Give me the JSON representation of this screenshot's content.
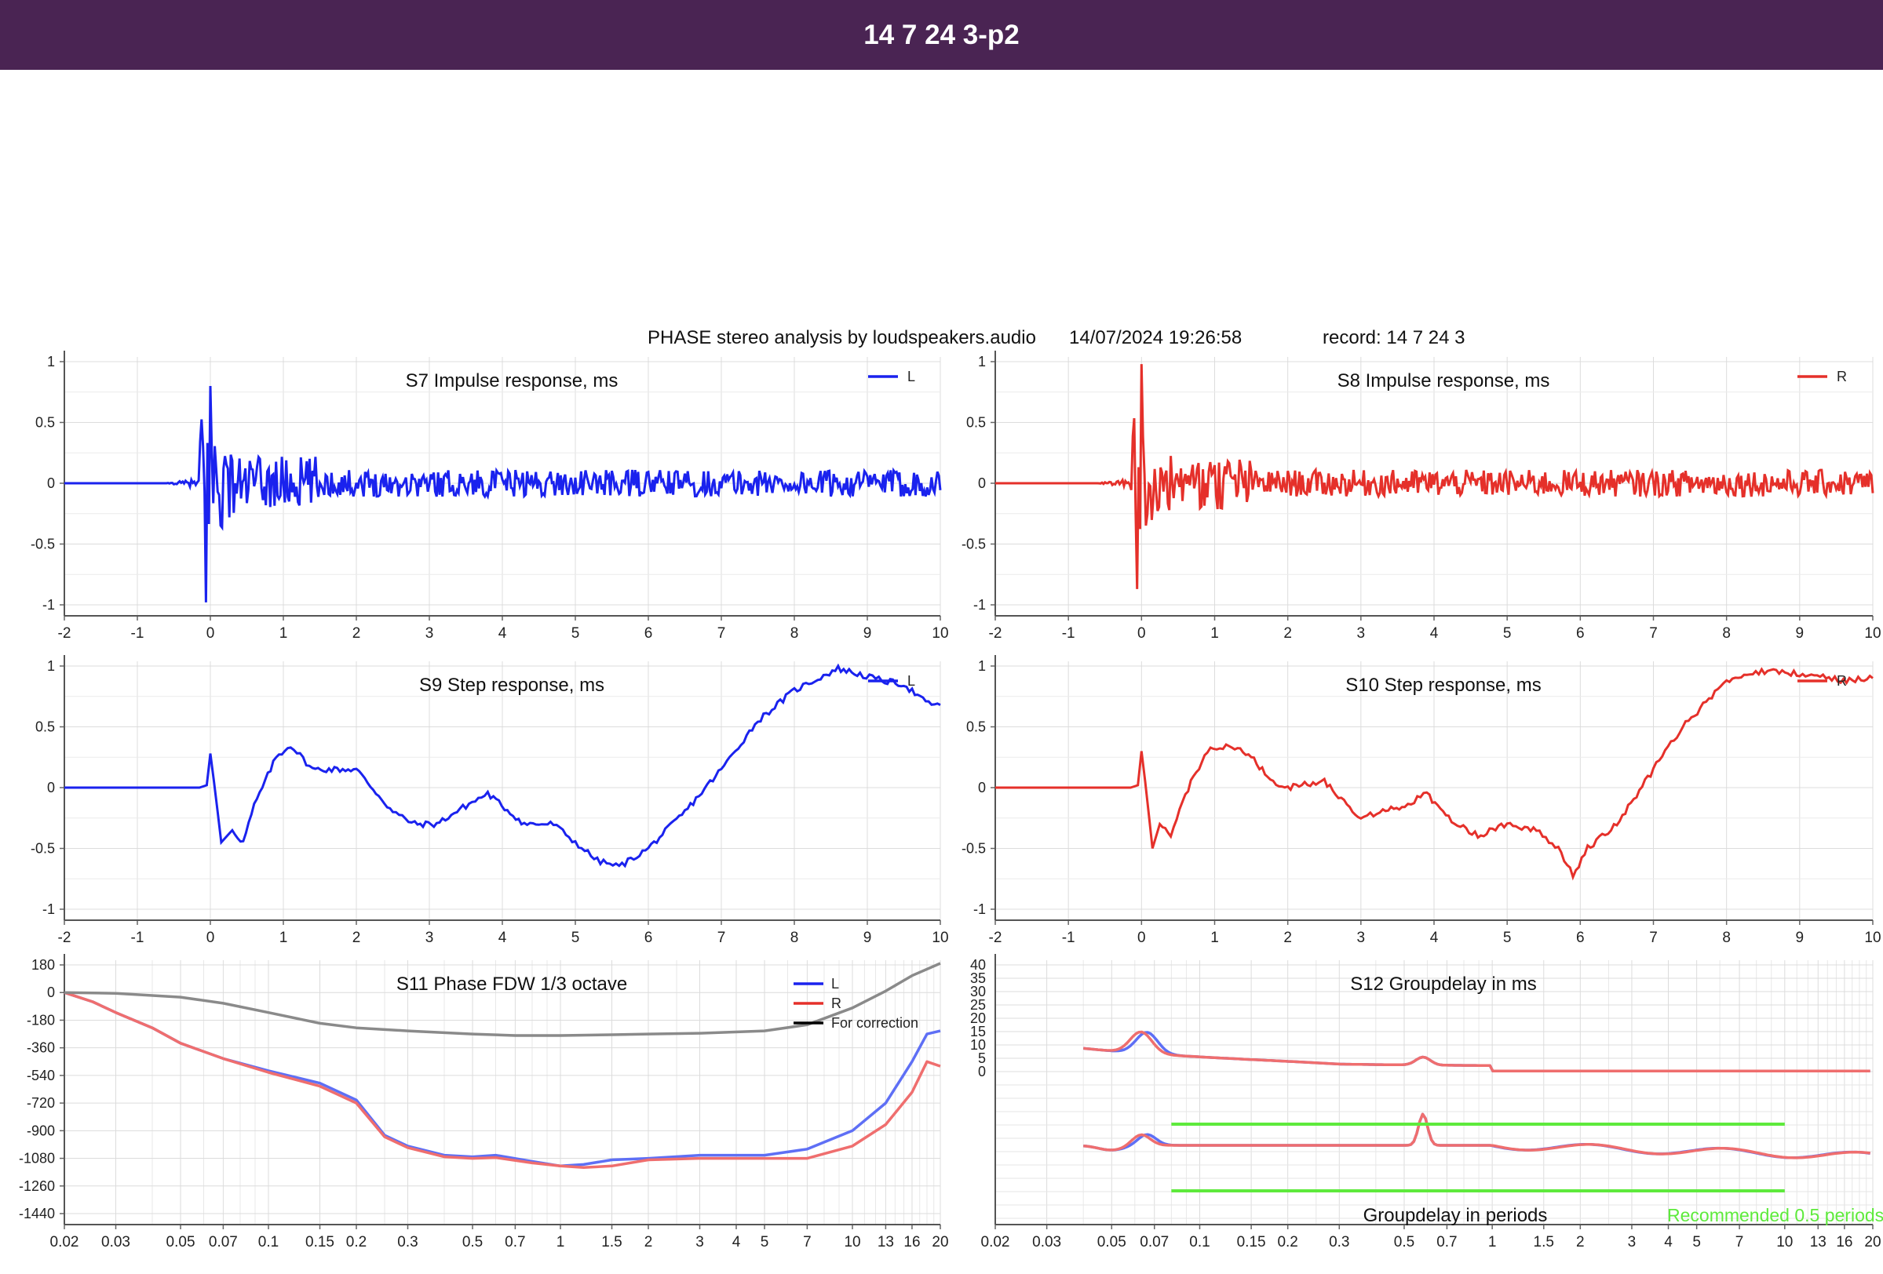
{
  "window": {
    "title": "14 7 24 3-p2"
  },
  "header": {
    "app": "PHASE stereo analysis by loudspeakers.audio",
    "datetime": "14/07/2024 19:26:58",
    "record": "record: 14 7 24 3"
  },
  "colors": {
    "L": "#1a22ee",
    "R": "#e5302a",
    "correction": "#8a8a8a",
    "green": "#5eea3c",
    "L_light": "#5e6ff5",
    "R_light": "#ef6e6e",
    "bar": "#4a2453"
  },
  "chart_data": [
    {
      "id": "s7",
      "type": "line",
      "title": "S7   Impulse response, ms",
      "xlim": [
        -2,
        10
      ],
      "ylim": [
        -1,
        1
      ],
      "xticks": [
        "-2",
        "-1",
        "0",
        "1",
        "2",
        "3",
        "4",
        "5",
        "6",
        "7",
        "8",
        "9",
        "10"
      ],
      "yticks": [
        "1",
        "0.5",
        "0",
        "-0.5",
        "-1"
      ],
      "legend": [
        "L"
      ],
      "series": [
        {
          "name": "L",
          "color": "L",
          "shape": "impulse",
          "peak_pos": 0.8,
          "peak_neg": -0.98
        }
      ]
    },
    {
      "id": "s8",
      "type": "line",
      "title": "S8   Impulse response, ms",
      "xlim": [
        -2,
        10
      ],
      "ylim": [
        -1,
        1
      ],
      "xticks": [
        "-2",
        "-1",
        "0",
        "1",
        "2",
        "3",
        "4",
        "5",
        "6",
        "7",
        "8",
        "9",
        "10"
      ],
      "yticks": [
        "1",
        "0.5",
        "0",
        "-0.5",
        "-1"
      ],
      "legend": [
        "R"
      ],
      "series": [
        {
          "name": "R",
          "color": "R",
          "shape": "impulse",
          "peak_pos": 0.98,
          "peak_neg": -0.87
        }
      ]
    },
    {
      "id": "s9",
      "type": "line",
      "title": "S9   Step response, ms",
      "xlim": [
        -2,
        10
      ],
      "ylim": [
        -1,
        1
      ],
      "xticks": [
        "-2",
        "-1",
        "0",
        "1",
        "2",
        "3",
        "4",
        "5",
        "6",
        "7",
        "8",
        "9",
        "10"
      ],
      "yticks": [
        "1",
        "0.5",
        "0",
        "-0.5",
        "-1"
      ],
      "legend": [
        "L"
      ],
      "series": [
        {
          "name": "L",
          "color": "L",
          "x": [
            -2,
            -0.15,
            -0.05,
            0.0,
            0.05,
            0.15,
            0.3,
            0.45,
            0.6,
            0.9,
            1.1,
            1.4,
            1.7,
            2.0,
            2.5,
            2.8,
            3.1,
            3.5,
            3.8,
            4.3,
            4.7,
            5.0,
            5.3,
            5.6,
            6.0,
            6.5,
            7.0,
            7.5,
            8.0,
            8.4,
            8.6,
            8.9,
            9.2,
            9.5,
            9.8,
            10.0
          ],
          "y": [
            0,
            0,
            0.02,
            0.28,
            0.05,
            -0.45,
            -0.35,
            -0.45,
            -0.15,
            0.25,
            0.35,
            0.15,
            0.15,
            0.15,
            -0.2,
            -0.3,
            -0.3,
            -0.15,
            -0.05,
            -0.3,
            -0.3,
            -0.45,
            -0.6,
            -0.65,
            -0.5,
            -0.2,
            0.15,
            0.55,
            0.8,
            0.92,
            0.98,
            0.93,
            0.88,
            0.85,
            0.7,
            0.68
          ]
        }
      ]
    },
    {
      "id": "s10",
      "type": "line",
      "title": "S10   Step response, ms",
      "xlim": [
        -2,
        10
      ],
      "ylim": [
        -1,
        1
      ],
      "xticks": [
        "-2",
        "-1",
        "0",
        "1",
        "2",
        "3",
        "4",
        "5",
        "6",
        "7",
        "8",
        "9",
        "10"
      ],
      "yticks": [
        "1",
        "0.5",
        "0",
        "-0.5",
        "-1"
      ],
      "legend": [
        "R"
      ],
      "series": [
        {
          "name": "R",
          "color": "R",
          "x": [
            -2,
            -0.15,
            -0.05,
            0.0,
            0.05,
            0.15,
            0.25,
            0.4,
            0.6,
            0.9,
            1.2,
            1.5,
            1.8,
            2.0,
            2.5,
            3.0,
            3.3,
            3.6,
            3.9,
            4.2,
            4.6,
            5.0,
            5.4,
            5.7,
            5.9,
            6.1,
            6.5,
            7.0,
            7.4,
            7.8,
            8.0,
            8.4,
            8.8,
            9.2,
            9.6,
            10.0
          ],
          "y": [
            0,
            0,
            0.02,
            0.3,
            0.05,
            -0.5,
            -0.3,
            -0.4,
            -0.05,
            0.3,
            0.35,
            0.25,
            0.05,
            0.0,
            0.05,
            -0.25,
            -0.2,
            -0.15,
            -0.05,
            -0.25,
            -0.4,
            -0.3,
            -0.35,
            -0.5,
            -0.72,
            -0.5,
            -0.3,
            0.15,
            0.5,
            0.75,
            0.88,
            0.95,
            0.95,
            0.92,
            0.88,
            0.9
          ]
        }
      ]
    },
    {
      "id": "s11",
      "type": "line",
      "title": "S11   Phase FDW 1/3 octave",
      "xscale": "log",
      "xlim": [
        0.02,
        20
      ],
      "ylim": [
        -1440,
        180
      ],
      "xticks": [
        "0.02",
        "0.03",
        "0.05",
        "0.07",
        "0.1",
        "0.15",
        "0.2",
        "0.3",
        "0.5",
        "0.7",
        "1",
        "1.5",
        "2",
        "3",
        "4",
        "5",
        "7",
        "10",
        "13",
        "16",
        "20"
      ],
      "yticks": [
        "180",
        "0",
        "-180",
        "-360",
        "-540",
        "-720",
        "-900",
        "-1080",
        "-1260",
        "-1440"
      ],
      "legend": [
        "L",
        "R",
        "For correction"
      ],
      "series": [
        {
          "name": "L",
          "color": "L_light",
          "x": [
            0.02,
            0.025,
            0.03,
            0.04,
            0.05,
            0.07,
            0.1,
            0.15,
            0.2,
            0.25,
            0.3,
            0.4,
            0.5,
            0.6,
            0.8,
            1.0,
            1.2,
            1.5,
            2,
            3,
            5,
            7,
            10,
            13,
            16,
            18,
            20
          ],
          "y": [
            0,
            -60,
            -130,
            -230,
            -330,
            -430,
            -510,
            -590,
            -700,
            -930,
            -1000,
            -1060,
            -1070,
            -1060,
            -1100,
            -1130,
            -1120,
            -1090,
            -1080,
            -1060,
            -1060,
            -1020,
            -900,
            -720,
            -450,
            -270,
            -250
          ]
        },
        {
          "name": "R",
          "color": "R_light",
          "x": [
            0.02,
            0.025,
            0.03,
            0.04,
            0.05,
            0.07,
            0.1,
            0.15,
            0.2,
            0.25,
            0.3,
            0.4,
            0.5,
            0.6,
            0.8,
            1.0,
            1.2,
            1.5,
            2,
            3,
            5,
            7,
            10,
            13,
            16,
            18,
            20
          ],
          "y": [
            0,
            -60,
            -130,
            -230,
            -330,
            -430,
            -520,
            -610,
            -720,
            -940,
            -1010,
            -1070,
            -1080,
            -1075,
            -1110,
            -1130,
            -1140,
            -1130,
            -1090,
            -1080,
            -1080,
            -1080,
            -1000,
            -860,
            -650,
            -450,
            -480
          ]
        },
        {
          "name": "For correction",
          "color": "correction",
          "x": [
            0.02,
            0.03,
            0.05,
            0.07,
            0.1,
            0.15,
            0.2,
            0.3,
            0.5,
            0.7,
            1,
            1.5,
            2,
            3,
            5,
            7,
            10,
            13,
            16,
            20
          ],
          "y": [
            0,
            -5,
            -30,
            -70,
            -130,
            -200,
            -230,
            -250,
            -270,
            -280,
            -280,
            -275,
            -270,
            -265,
            -250,
            -210,
            -100,
            10,
            110,
            190
          ]
        }
      ]
    },
    {
      "id": "s12",
      "type": "line",
      "title": "S12   Groupdelay in ms",
      "xscale": "log",
      "xlim": [
        0.02,
        20
      ],
      "xticks": [
        "0.02",
        "0.03",
        "0.05",
        "0.07",
        "0.1",
        "0.15",
        "0.2",
        "0.3",
        "0.5",
        "0.7",
        "1",
        "1.5",
        "2",
        "3",
        "4",
        "5",
        "7",
        "10",
        "13",
        "16",
        "20"
      ],
      "yticks": [
        "40",
        "35",
        "30",
        "25",
        "20",
        "15",
        "10",
        "5",
        "0"
      ],
      "subtitle_periods": "Groupdelay in periods",
      "recommended": "Recommended 0.5 periods"
    }
  ]
}
